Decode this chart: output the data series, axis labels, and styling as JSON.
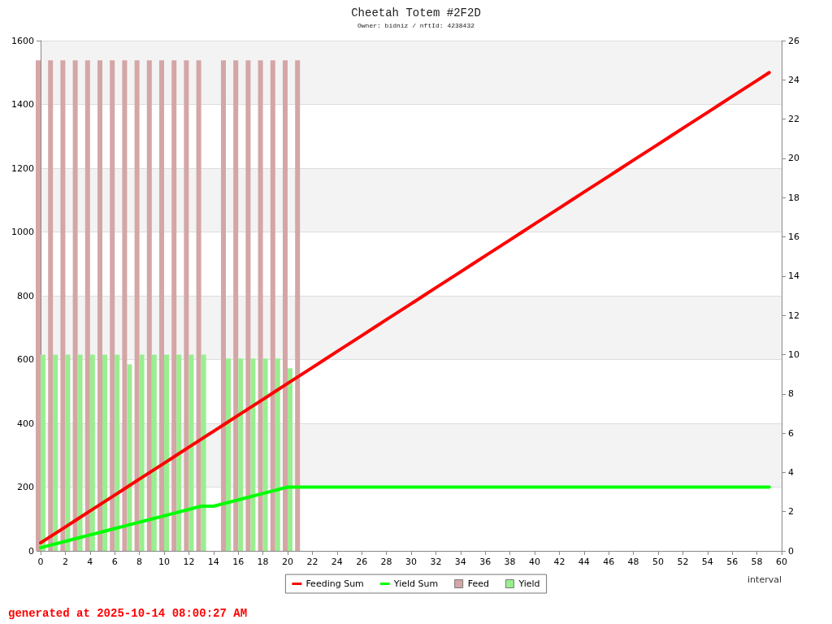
{
  "chart_data": {
    "type": "line",
    "title": "Cheetah Totem #2F2D",
    "subtitle": "Owner: bidniz / nftId: 4238432",
    "xlabel": "interval",
    "annotations": [
      "generated at 2025-10-14 08:00:27 AM"
    ],
    "xlim": [
      0,
      60
    ],
    "xticks": [
      0,
      2,
      4,
      6,
      8,
      10,
      12,
      14,
      16,
      18,
      20,
      22,
      24,
      26,
      28,
      30,
      32,
      34,
      36,
      38,
      40,
      42,
      44,
      46,
      48,
      50,
      52,
      54,
      56,
      58,
      60
    ],
    "ylim": [
      0,
      1600
    ],
    "yticks": [
      0,
      200,
      400,
      600,
      800,
      1000,
      1200,
      1400,
      1600
    ],
    "y2lim": [
      0,
      26
    ],
    "y2ticks": [
      0,
      2,
      4,
      6,
      8,
      10,
      12,
      14,
      16,
      18,
      20,
      22,
      24,
      26
    ],
    "grid": "y",
    "legend": "bottom",
    "marker": "none",
    "line_style": "solid",
    "series": [
      {
        "name": "Feeding Sum",
        "color": "#ff0000",
        "x": [
          0,
          1,
          2,
          3,
          4,
          5,
          6,
          7,
          8,
          9,
          10,
          11,
          12,
          13,
          14,
          15,
          16,
          17,
          18,
          19,
          20,
          21,
          22,
          23,
          24,
          25,
          26,
          27,
          28,
          29,
          30,
          31,
          32,
          33,
          34,
          35,
          36,
          37,
          38,
          39,
          40,
          41,
          42,
          43,
          44,
          45,
          46,
          47,
          48,
          49,
          50,
          51,
          52,
          53,
          54,
          55,
          56,
          57,
          58,
          59
        ],
        "values": [
          25,
          50,
          75,
          100,
          125,
          150,
          175,
          200,
          225,
          250,
          275,
          300,
          325,
          350,
          375,
          400,
          425,
          450,
          475,
          500,
          525,
          550,
          575,
          600,
          625,
          650,
          675,
          700,
          725,
          750,
          775,
          800,
          825,
          850,
          875,
          900,
          925,
          950,
          975,
          1000,
          1025,
          1050,
          1075,
          1100,
          1125,
          1150,
          1175,
          1200,
          1225,
          1250,
          1275,
          1300,
          1325,
          1350,
          1375,
          1400,
          1425,
          1450,
          1475,
          1500
        ]
      },
      {
        "name": "Yield Sum",
        "color": "#00ff00",
        "x": [
          0,
          1,
          2,
          3,
          4,
          5,
          6,
          7,
          8,
          9,
          10,
          11,
          12,
          13,
          14,
          15,
          16,
          17,
          18,
          19,
          20,
          21,
          22,
          23,
          24,
          25,
          26,
          27,
          28,
          29,
          30,
          31,
          32,
          33,
          34,
          35,
          36,
          37,
          38,
          39,
          40,
          41,
          42,
          43,
          44,
          45,
          46,
          47,
          48,
          49,
          50,
          51,
          52,
          53,
          54,
          55,
          56,
          57,
          58,
          59
        ],
        "values": [
          10,
          20,
          30,
          40,
          50,
          60,
          70,
          80,
          90,
          100,
          110,
          120,
          130,
          140,
          140,
          150,
          160,
          170,
          180,
          190,
          200,
          200,
          200,
          200,
          200,
          200,
          200,
          200,
          200,
          200,
          200,
          200,
          200,
          200,
          200,
          200,
          200,
          200,
          200,
          200,
          200,
          200,
          200,
          200,
          200,
          200,
          200,
          200,
          200,
          200,
          200,
          200,
          200,
          200,
          200,
          200,
          200,
          200,
          200,
          200
        ]
      },
      {
        "name": "Feed",
        "type": "bar",
        "axis": "y2",
        "color": "#d4a6a6",
        "x": [
          0,
          1,
          2,
          3,
          4,
          5,
          6,
          7,
          8,
          9,
          10,
          11,
          12,
          13,
          15,
          16,
          17,
          18,
          19,
          20,
          21
        ],
        "values": [
          25,
          25,
          25,
          25,
          25,
          25,
          25,
          25,
          25,
          25,
          25,
          25,
          25,
          25,
          25,
          25,
          25,
          25,
          25,
          25,
          25
        ]
      },
      {
        "name": "Yield",
        "type": "bar",
        "axis": "y2",
        "color": "#99ee90",
        "x": [
          0,
          1,
          2,
          3,
          4,
          5,
          6,
          7,
          8,
          9,
          10,
          11,
          12,
          13,
          15,
          16,
          17,
          18,
          19,
          20
        ],
        "values": [
          10,
          10,
          10,
          10,
          10,
          10,
          10,
          9.5,
          10,
          10,
          10,
          10,
          10,
          10,
          9.8,
          9.8,
          9.8,
          9.8,
          9.8,
          9.3
        ]
      }
    ]
  }
}
